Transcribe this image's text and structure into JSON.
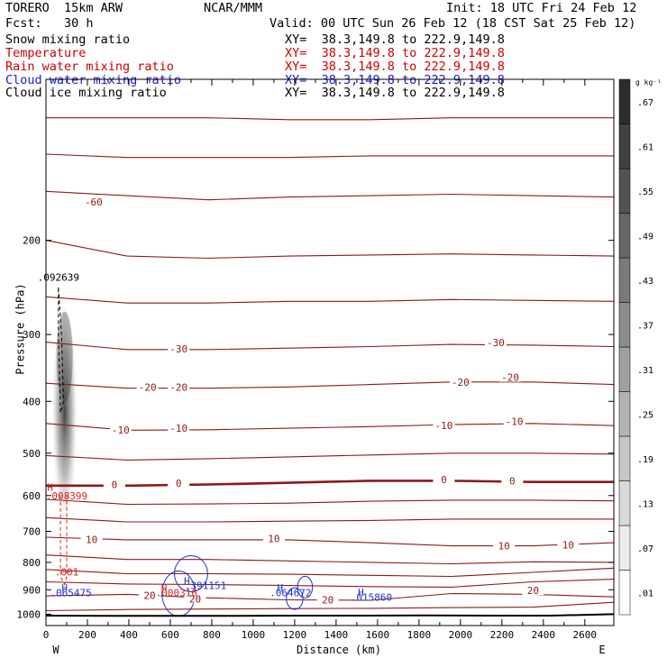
{
  "header": {
    "model": "TORERO  15km ARW",
    "center": "NCAR/MMM",
    "init": "Init: 18 UTC Fri 24 Feb 12",
    "fcst": "Fcst:   30 h",
    "valid": "Valid: 00 UTC Sun 26 Feb 12 (18 CST Sat 25 Feb 12)"
  },
  "fields": [
    {
      "name": "Snow mixing ratio",
      "xy": "XY=  38.3,149.8 to 222.9,149.8",
      "color": "#000000"
    },
    {
      "name": "Temperature",
      "xy": "XY=  38.3,149.8 to 222.9,149.8",
      "color": "#cc0000"
    },
    {
      "name": "Rain water mixing ratio",
      "xy": "XY=  38.3,149.8 to 222.9,149.8",
      "color": "#cc0000"
    },
    {
      "name": "Cloud water mixing ratio",
      "xy": "XY=  38.3,149.8 to 222.9,149.8",
      "color": "#1a1acc"
    },
    {
      "name": "Cloud ice mixing ratio",
      "xy": "XY=  38.3,149.8 to 222.9,149.8",
      "color": "#000000"
    }
  ],
  "colors": {
    "temperature": "#8b1a1a",
    "rain": "#dd2222",
    "cloud_water": "#2233cc",
    "terrain": "#000000"
  },
  "chart_data": {
    "type": "contour",
    "xlabel": "Distance (km)",
    "ylabel": "Pressure (hPa)",
    "x_ticks": [
      0,
      100,
      200,
      300,
      400,
      500,
      600,
      700,
      800,
      900,
      1000,
      1100,
      1200,
      1300,
      1400,
      1500,
      1600,
      1700,
      1800,
      1900,
      2000,
      2100,
      2200,
      2300,
      2400,
      2500,
      2600
    ],
    "x_tick_labels": [
      "0",
      "200",
      "400",
      "600",
      "800",
      "1000",
      "1200",
      "1400",
      "1600",
      "1800",
      "2000",
      "2200",
      "2400",
      "2600"
    ],
    "xlim": [
      0,
      2740
    ],
    "y_tick_labels": [
      "200",
      "300",
      "400",
      "500",
      "600",
      "700",
      "800",
      "900",
      "1000"
    ],
    "ylim": [
      1050,
      100
    ],
    "x_end_labels": {
      "left": "W",
      "right": "E"
    },
    "colorbar": {
      "unit": "g kg⁻¹",
      "levels": [
        ".01",
        ".07",
        ".13",
        ".19",
        ".25",
        ".31",
        ".37",
        ".43",
        ".49",
        ".55",
        ".61",
        ".67"
      ]
    },
    "temperature_contour_labels": [
      {
        "text": "-60",
        "x": 230,
        "p": 170
      },
      {
        "text": "-30",
        "x": 640,
        "p": 320
      },
      {
        "text": "-30",
        "x": 2170,
        "p": 312
      },
      {
        "text": "-20",
        "x": 490,
        "p": 378
      },
      {
        "text": "-20",
        "x": 640,
        "p": 378
      },
      {
        "text": "-20",
        "x": 2000,
        "p": 370
      },
      {
        "text": "-20",
        "x": 2240,
        "p": 362
      },
      {
        "text": "-10",
        "x": 360,
        "p": 454
      },
      {
        "text": "-10",
        "x": 640,
        "p": 451
      },
      {
        "text": "-10",
        "x": 1920,
        "p": 445
      },
      {
        "text": "-10",
        "x": 2260,
        "p": 438
      },
      {
        "text": "0",
        "x": 330,
        "p": 574
      },
      {
        "text": "0",
        "x": 640,
        "p": 571
      },
      {
        "text": "0",
        "x": 1920,
        "p": 562
      },
      {
        "text": "0",
        "x": 2250,
        "p": 566
      },
      {
        "text": "10",
        "x": 220,
        "p": 728
      },
      {
        "text": "10",
        "x": 1100,
        "p": 725
      },
      {
        "text": "10",
        "x": 2210,
        "p": 748
      },
      {
        "text": "10",
        "x": 2520,
        "p": 745
      },
      {
        "text": "20",
        "x": 500,
        "p": 926
      },
      {
        "text": "20",
        "x": 720,
        "p": 940
      },
      {
        "text": "20",
        "x": 1360,
        "p": 944
      },
      {
        "text": "20",
        "x": 2350,
        "p": 906
      }
    ],
    "extrema_labels": [
      {
        "text": "H",
        "x": 20,
        "p": 588,
        "color": "#dd2222"
      },
      {
        "text": ".008399",
        "x": 100,
        "p": 610,
        "color": "#dd2222"
      },
      {
        "text": ".001",
        "x": 100,
        "p": 847,
        "color": "#dd2222"
      },
      {
        "text": "H",
        "x": 90,
        "p": 906,
        "color": "#2233cc"
      },
      {
        "text": ".065475",
        "x": 120,
        "p": 925,
        "color": "#2233cc"
      },
      {
        "text": "H",
        "x": 680,
        "p": 880,
        "color": "#2233cc"
      },
      {
        "text": ".391151",
        "x": 770,
        "p": 898,
        "color": "#2233cc"
      },
      {
        "text": "H",
        "x": 570,
        "p": 908,
        "color": "#dd2222"
      },
      {
        "text": ".000316",
        "x": 630,
        "p": 926,
        "color": "#dd2222"
      },
      {
        "text": "H",
        "x": 1130,
        "p": 906,
        "color": "#2233cc"
      },
      {
        "text": ".064672",
        "x": 1180,
        "p": 925,
        "color": "#2233cc"
      },
      {
        "text": "H",
        "x": 1520,
        "p": 924,
        "color": "#2233cc"
      },
      {
        "text": ".015860",
        "x": 1570,
        "p": 944,
        "color": "#2233cc"
      },
      {
        "text": ".092639",
        "x": 60,
        "p": 238,
        "color": "#000000"
      }
    ],
    "isotherms": [
      {
        "p": [
          118,
          118,
          118,
          119,
          119,
          118,
          118,
          118
        ],
        "bold": false
      },
      {
        "p": [
          138,
          140,
          140,
          140,
          139,
          139,
          139,
          139
        ],
        "bold": false
      },
      {
        "p": [
          162,
          165,
          168,
          166,
          165,
          164,
          165,
          166
        ],
        "bold": false
      },
      {
        "p": [
          200,
          214,
          216,
          214,
          213,
          212,
          213,
          214
        ],
        "bold": false
      },
      {
        "p": [
          255,
          262,
          262,
          260,
          260,
          258,
          259,
          260
        ],
        "bold": false
      },
      {
        "p": [
          310,
          320,
          320,
          318,
          316,
          313,
          314,
          316
        ],
        "bold": false
      },
      {
        "p": [
          370,
          378,
          378,
          376,
          372,
          368,
          368,
          372
        ],
        "bold": false
      },
      {
        "p": [
          440,
          453,
          452,
          449,
          446,
          442,
          440,
          444
        ],
        "bold": false
      },
      {
        "p": [
          505,
          515,
          512,
          508,
          504,
          500,
          500,
          502
        ],
        "bold": false
      },
      {
        "p": [
          575,
          575,
          572,
          568,
          563,
          563,
          566,
          566
        ],
        "bold": true
      },
      {
        "p": [
          610,
          623,
          622,
          620,
          615,
          612,
          612,
          614
        ],
        "bold": false
      },
      {
        "p": [
          660,
          672,
          672,
          670,
          668,
          664,
          664,
          664
        ],
        "bold": false
      },
      {
        "p": [
          718,
          726,
          726,
          726,
          735,
          745,
          745,
          735
        ],
        "bold": false
      },
      {
        "p": [
          775,
          790,
          790,
          795,
          800,
          805,
          798,
          800
        ],
        "bold": false
      },
      {
        "p": [
          825,
          840,
          840,
          842,
          846,
          850,
          835,
          820
        ],
        "bold": false
      },
      {
        "p": [
          870,
          878,
          880,
          884,
          888,
          890,
          870,
          860
        ],
        "bold": false
      },
      {
        "p": [
          924,
          918,
          932,
          940,
          942,
          915,
          918,
          928
        ],
        "bold": false
      },
      {
        "p": [
          985,
          980,
          978,
          976,
          975,
          972,
          970,
          950
        ],
        "bold": false
      }
    ],
    "terrain_p": [
      1006,
      1007,
      1007,
      1007,
      1006,
      1006,
      1005,
      1006,
      1006,
      1000
    ]
  }
}
